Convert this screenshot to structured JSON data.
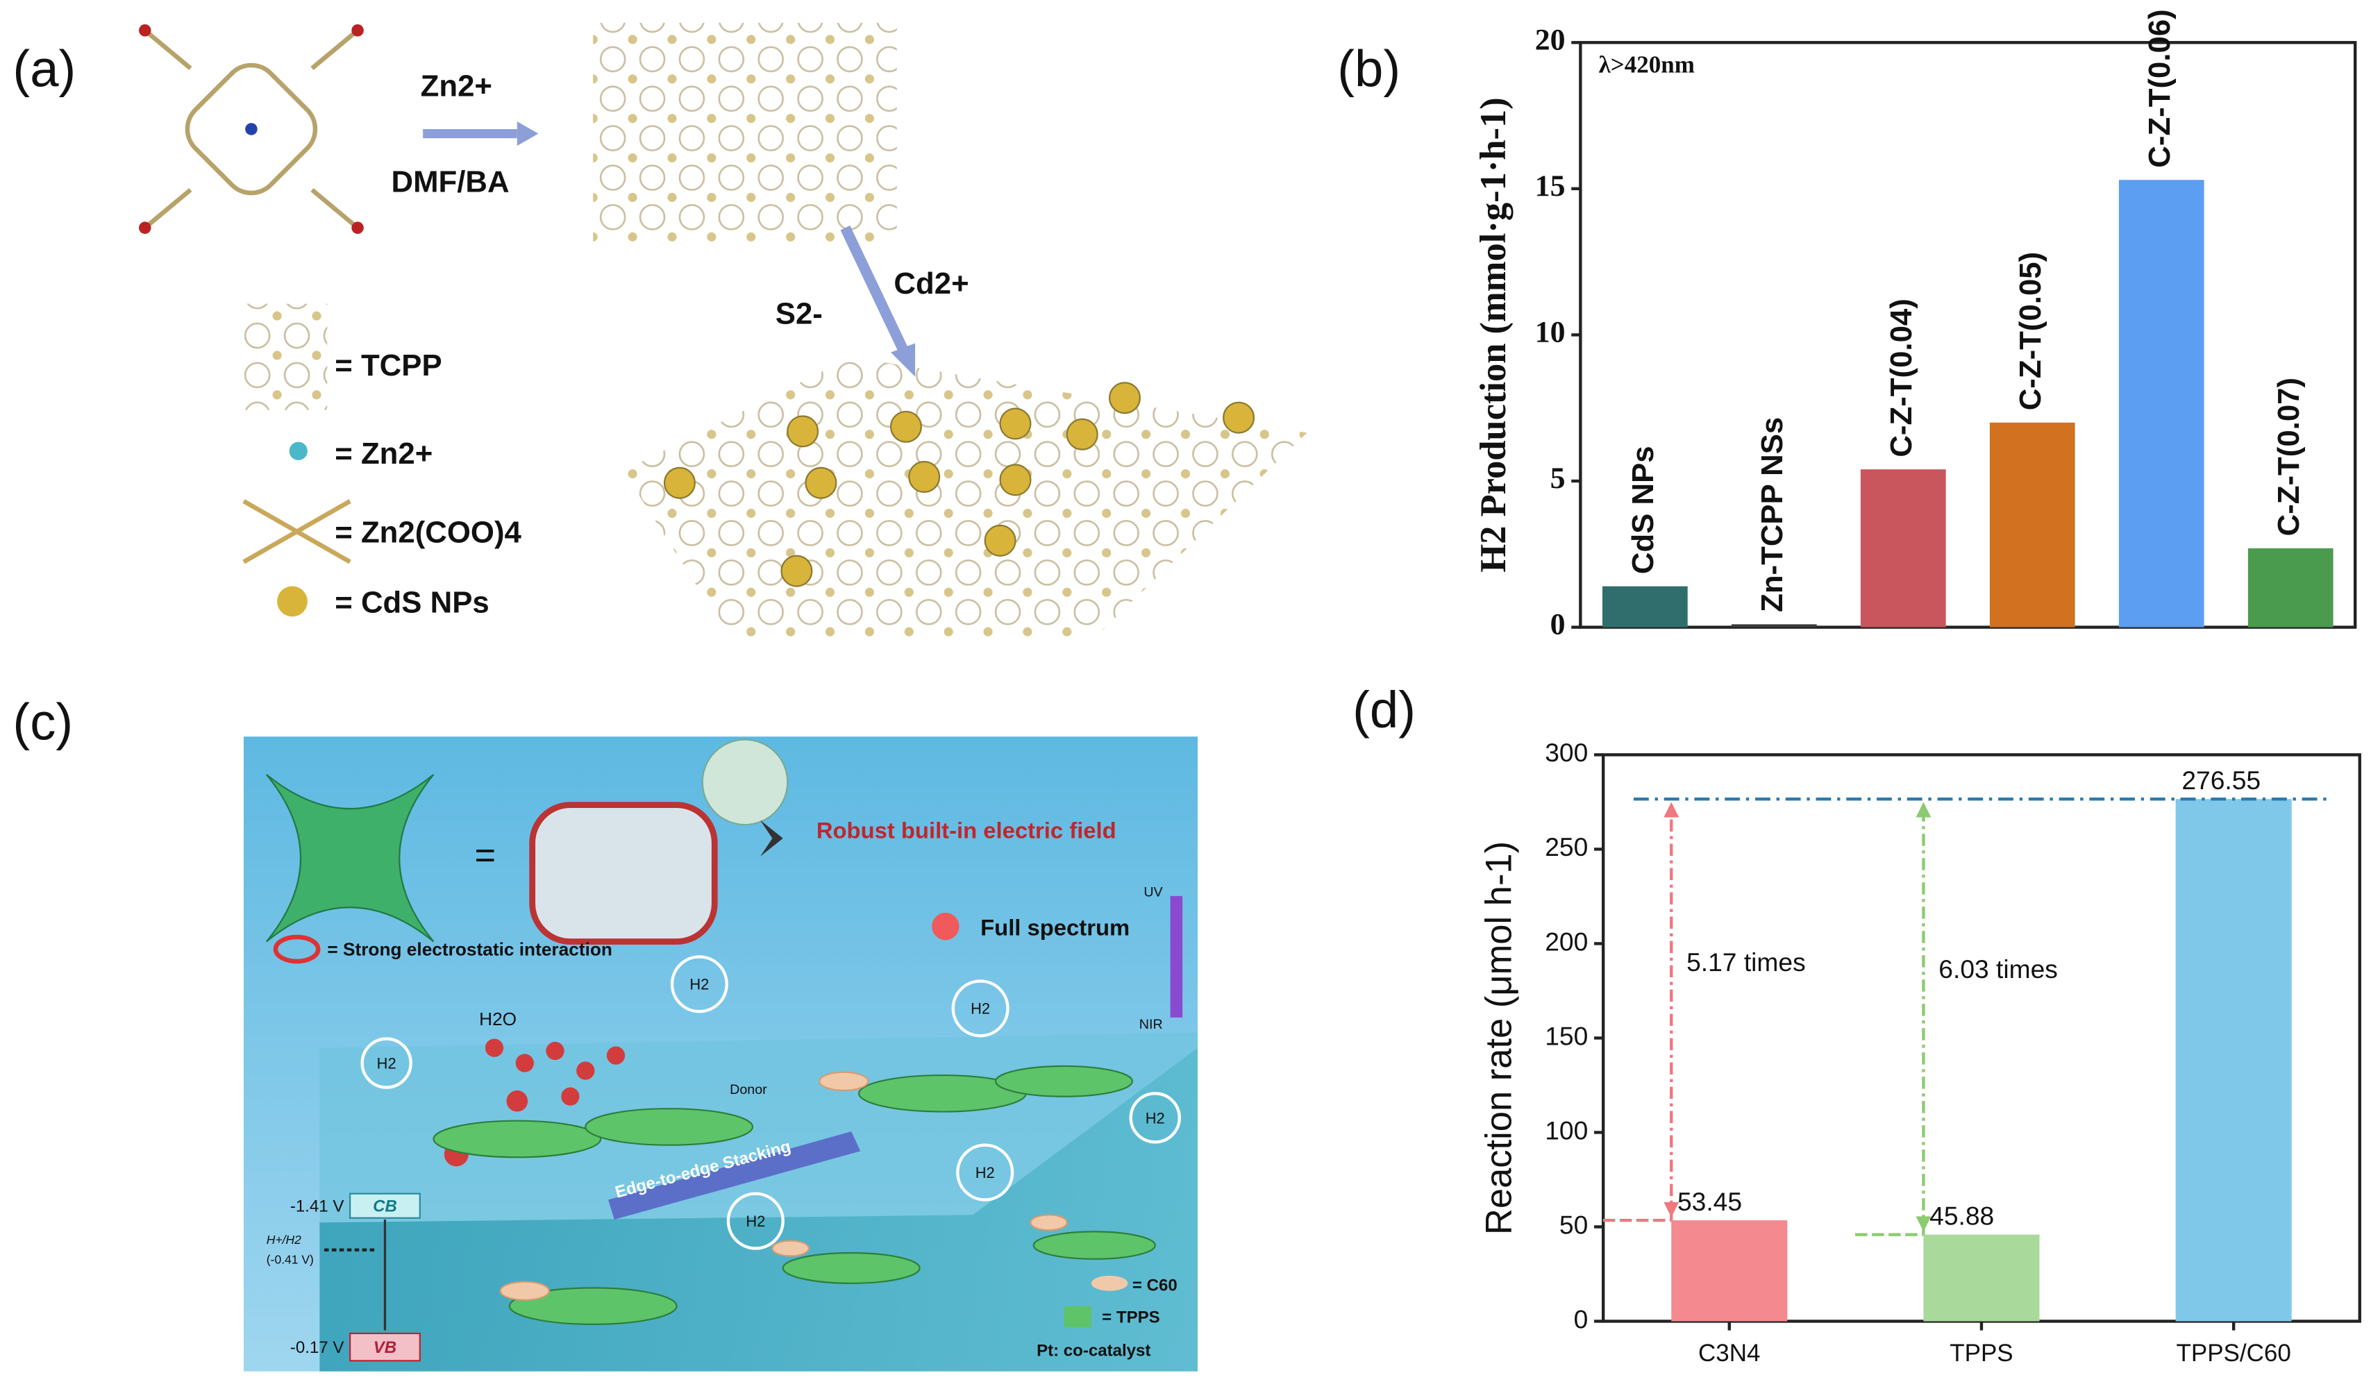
{
  "panel_labels": [
    "(a)",
    "(b)",
    "(c)",
    "(d)"
  ],
  "diagram_a": {
    "arrow_top": "Zn2+",
    "arrow_bottom": "DMF/BA",
    "arrow2_left": "S2-",
    "arrow2_right": "Cd2+",
    "legend": [
      "= TCPP",
      "= Zn2+",
      "= Zn2(COO)4",
      "= CdS NPs"
    ]
  },
  "chart_data": [
    {
      "type": "bar",
      "annotation": "λ>420nm",
      "y_label": "H2 Production (mmol·g-1·h-1)",
      "categories": [
        "CdS NPs",
        "Zn-TCPP NSs",
        "C-Z-T(0.04)",
        "C-Z-T(0.05)",
        "C-Z-T(0.06)",
        "C-Z-T(0.07)"
      ],
      "values": [
        1.4,
        0.1,
        5.4,
        7.0,
        15.3,
        2.7
      ],
      "colors": [
        "#2f6e6c",
        "#3a3a3a",
        "#c9565c",
        "#d2711f",
        "#5c9ef2",
        "#4b9b4f"
      ],
      "ylim": [
        0,
        20
      ],
      "yticks": [
        0,
        5,
        10,
        15,
        20
      ]
    },
    {
      "type": "bar",
      "y_label": "Reaction rate (μmol h-1)",
      "categories": [
        "C3N4",
        "TPPS",
        "TPPS/C60"
      ],
      "values": [
        53.45,
        45.88,
        276.55
      ],
      "colors": [
        "#f4898f",
        "#a9d99b",
        "#7fc8ea"
      ],
      "annotations": [
        "5.17 times",
        "6.03 times"
      ],
      "ylim": [
        0,
        300
      ],
      "yticks": [
        0,
        50,
        100,
        150,
        200,
        250,
        300
      ]
    }
  ],
  "diagram_c": {
    "title": "Robust built-in electric field",
    "interaction": "= Strong electrostatic interaction",
    "light": "Full spectrum",
    "uv": "UV",
    "nir": "NIR",
    "water": "H2O",
    "donor": "Donor",
    "stacking": "Edge-to-edge Stacking",
    "cb_potential": "-1.41 V",
    "cb": "CB",
    "redox": "H+/H2",
    "redox_potential": "(-0.41 V)",
    "vb_potential": "-0.17 V",
    "vb": "VB",
    "legend": [
      "= C60",
      "= TPPS"
    ],
    "catalyst": "Pt: co-catalyst",
    "h2": "H2"
  }
}
